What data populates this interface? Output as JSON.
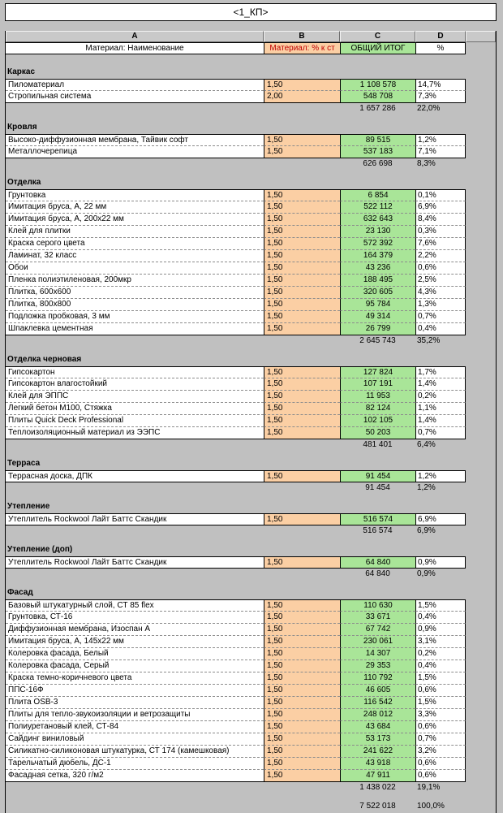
{
  "title": "<1_КП>",
  "columns": {
    "a": "A",
    "b": "B",
    "c": "C",
    "d": "D"
  },
  "header": {
    "name": "Материал: Наименование",
    "pct_st": "Материал: % к ст",
    "total": "ОБЩИЙ ИТОГ",
    "pct": "%"
  },
  "colors": {
    "peach": "#fbcfa4",
    "green": "#a9e598",
    "header_red": "#c00000",
    "bg": "#c0c0c0"
  },
  "sections": [
    {
      "name": "Каркас",
      "rows": [
        {
          "name": "Пиломатериал",
          "pct_st": "1,50",
          "total": "1 108 578",
          "pct": "14,7%"
        },
        {
          "name": "Стропильная система",
          "pct_st": "2,00",
          "total": "548 708",
          "pct": "7,3%"
        }
      ],
      "subtotal": {
        "total": "1 657 286",
        "pct": "22,0%"
      }
    },
    {
      "name": "Кровля",
      "rows": [
        {
          "name": "Высоко-диффузионная мембрана, Тайвик софт",
          "pct_st": "1,50",
          "total": "89 515",
          "pct": "1,2%"
        },
        {
          "name": "Металлочерепица",
          "pct_st": "1,50",
          "total": "537 183",
          "pct": "7,1%"
        }
      ],
      "subtotal": {
        "total": "626 698",
        "pct": "8,3%"
      }
    },
    {
      "name": "Отделка",
      "rows": [
        {
          "name": "Грунтовка",
          "pct_st": "1,50",
          "total": "6 854",
          "pct": "0,1%"
        },
        {
          "name": "Имитация бруса, А, 22 мм",
          "pct_st": "1,50",
          "total": "522 112",
          "pct": "6,9%"
        },
        {
          "name": "Имитация бруса, А, 200х22 мм",
          "pct_st": "1,50",
          "total": "632 643",
          "pct": "8,4%"
        },
        {
          "name": "Клей для плитки",
          "pct_st": "1,50",
          "total": "23 130",
          "pct": "0,3%"
        },
        {
          "name": "Краска серого цвета",
          "pct_st": "1,50",
          "total": "572 392",
          "pct": "7,6%"
        },
        {
          "name": "Ламинат, 32 класс",
          "pct_st": "1,50",
          "total": "164 379",
          "pct": "2,2%"
        },
        {
          "name": "Обои",
          "pct_st": "1,50",
          "total": "43 236",
          "pct": "0,6%"
        },
        {
          "name": "Пленка полиэтиленовая, 200мкр",
          "pct_st": "1,50",
          "total": "188 495",
          "pct": "2,5%"
        },
        {
          "name": "Плитка, 600х600",
          "pct_st": "1,50",
          "total": "320 605",
          "pct": "4,3%"
        },
        {
          "name": "Плитка, 800х800",
          "pct_st": "1,50",
          "total": "95 784",
          "pct": "1,3%"
        },
        {
          "name": "Подложка пробковая, 3 мм",
          "pct_st": "1,50",
          "total": "49 314",
          "pct": "0,7%"
        },
        {
          "name": "Шпаклевка цементная",
          "pct_st": "1,50",
          "total": "26 799",
          "pct": "0,4%"
        }
      ],
      "subtotal": {
        "total": "2 645 743",
        "pct": "35,2%"
      }
    },
    {
      "name": "Отделка черновая",
      "rows": [
        {
          "name": "Гипсокартон",
          "pct_st": "1,50",
          "total": "127 824",
          "pct": "1,7%"
        },
        {
          "name": "Гипсокартон влагостойкий",
          "pct_st": "1,50",
          "total": "107 191",
          "pct": "1,4%"
        },
        {
          "name": "Клей для ЭППС",
          "pct_st": "1,50",
          "total": "11 953",
          "pct": "0,2%"
        },
        {
          "name": "Легкий бетон М100, Стяжка",
          "pct_st": "1,50",
          "total": "82 124",
          "pct": "1,1%"
        },
        {
          "name": "Плиты Quick Deck Professional",
          "pct_st": "1,50",
          "total": "102 105",
          "pct": "1,4%"
        },
        {
          "name": "Теплоизоляционный материал из ЭЭПС",
          "pct_st": "1,50",
          "total": "50 203",
          "pct": "0,7%"
        }
      ],
      "subtotal": {
        "total": "481 401",
        "pct": "6,4%"
      }
    },
    {
      "name": "Терраса",
      "rows": [
        {
          "name": "Террасная доска, ДПК",
          "pct_st": "1,50",
          "total": "91 454",
          "pct": "1,2%"
        }
      ],
      "subtotal": {
        "total": "91 454",
        "pct": "1,2%"
      }
    },
    {
      "name": "Утепление",
      "rows": [
        {
          "name": "Утеплитель Rockwool Лайт Баттс Скандик",
          "pct_st": "1,50",
          "total": "516 574",
          "pct": "6,9%"
        }
      ],
      "subtotal": {
        "total": "516 574",
        "pct": "6,9%"
      }
    },
    {
      "name": "Утепление (доп)",
      "rows": [
        {
          "name": "Утеплитель Rockwool Лайт Баттс Скандик",
          "pct_st": "1,50",
          "total": "64 840",
          "pct": "0,9%"
        }
      ],
      "subtotal": {
        "total": "64 840",
        "pct": "0,9%"
      }
    },
    {
      "name": "Фасад",
      "rows": [
        {
          "name": "Базовый штукатурный слой, СТ 85 flex",
          "pct_st": "1,50",
          "total": "110 630",
          "pct": "1,5%"
        },
        {
          "name": "Грунтовка, СТ-16",
          "pct_st": "1,50",
          "total": "33 671",
          "pct": "0,4%"
        },
        {
          "name": "Диффузионная мембрана, Изоспан А",
          "pct_st": "1,50",
          "total": "67 742",
          "pct": "0,9%"
        },
        {
          "name": "Имитация бруса, А, 145х22 мм",
          "pct_st": "1,50",
          "total": "230 061",
          "pct": "3,1%"
        },
        {
          "name": "Колеровка фасада, Белый",
          "pct_st": "1,50",
          "total": "14 307",
          "pct": "0,2%"
        },
        {
          "name": "Колеровка фасада, Серый",
          "pct_st": "1,50",
          "total": "29 353",
          "pct": "0,4%"
        },
        {
          "name": "Краска темно-коричневого цвета",
          "pct_st": "1,50",
          "total": "110 792",
          "pct": "1,5%"
        },
        {
          "name": "ППС-16Ф",
          "pct_st": "1,50",
          "total": "46 605",
          "pct": "0,6%"
        },
        {
          "name": "Плита OSB-3",
          "pct_st": "1,50",
          "total": "116 542",
          "pct": "1,5%"
        },
        {
          "name": "Плиты для тепло-звукоизоляции и ветрозащиты",
          "pct_st": "1,50",
          "total": "248 012",
          "pct": "3,3%"
        },
        {
          "name": "Полиуретановый клей, СТ-84",
          "pct_st": "1,50",
          "total": "43 684",
          "pct": "0,6%"
        },
        {
          "name": "Сайдинг виниловый",
          "pct_st": "1,50",
          "total": "53 173",
          "pct": "0,7%"
        },
        {
          "name": "Силикатно-силиконовая штукатурка, СТ 174 (камешковая)",
          "pct_st": "1,50",
          "total": "241 622",
          "pct": "3,2%"
        },
        {
          "name": "Тарельчатый дюбель, ДС-1",
          "pct_st": "1,50",
          "total": "43 918",
          "pct": "0,6%"
        },
        {
          "name": "Фасадная сетка, 320 г/м2",
          "pct_st": "1,50",
          "total": "47 911",
          "pct": "0,6%"
        }
      ],
      "subtotal": {
        "total": "1 438 022",
        "pct": "19,1%"
      }
    }
  ],
  "grand_total": {
    "total": "7 522 018",
    "pct": "100,0%"
  }
}
